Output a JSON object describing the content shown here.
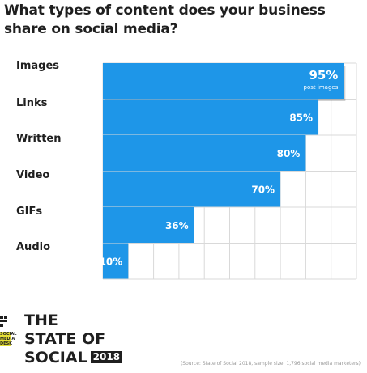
{
  "title": "What types of content does your business share on social media?",
  "chart_data": {
    "type": "bar",
    "orientation": "horizontal",
    "categories": [
      "Images",
      "Links",
      "Written",
      "Video",
      "GIFs",
      "Audio"
    ],
    "values": [
      95,
      85,
      80,
      70,
      36,
      10
    ],
    "value_labels": [
      "95%",
      "85%",
      "80%",
      "70%",
      "36%",
      "10%"
    ],
    "highlight_note": "post images",
    "xlim": [
      0,
      100
    ],
    "grid": true,
    "bar_color": "#1e96e8",
    "grid_color": "#d9d9d9"
  },
  "logo": {
    "line1": "THE",
    "line2": "STATE OF",
    "line3": "SOCIAL",
    "year": "2018",
    "mark_text": "SOCIAL MEDIA DESK"
  },
  "source": "(Source: State of Social 2018, sample size: 1,796 social media marketers)"
}
